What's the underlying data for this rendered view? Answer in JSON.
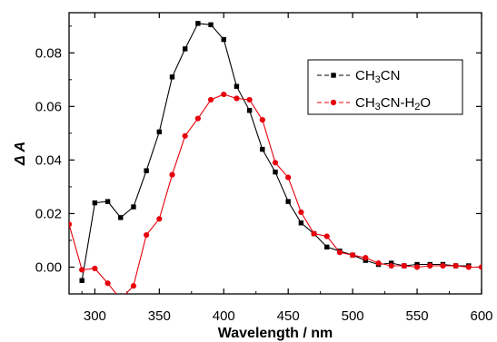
{
  "chart_data": {
    "type": "line",
    "title": "",
    "xlabel": "Wavelength / nm",
    "ylabel": "Δ A",
    "xlim": [
      280,
      600
    ],
    "ylim": [
      -0.01,
      0.095
    ],
    "xticks": [
      300,
      350,
      400,
      450,
      500,
      550,
      600
    ],
    "yticks": [
      0.0,
      0.02,
      0.04,
      0.06,
      0.08
    ],
    "xtick_labels": [
      "300",
      "350",
      "400",
      "450",
      "500",
      "550",
      "600"
    ],
    "ytick_labels": [
      "0.00",
      "0.02",
      "0.04",
      "0.06",
      "0.08"
    ],
    "grid": false,
    "legend_position": "top-right",
    "series": [
      {
        "name": "CH₃CN",
        "legend_parts": [
          "CH",
          "3",
          "CN"
        ],
        "color": "#000000",
        "marker": "square",
        "x": [
          290,
          300,
          310,
          320,
          330,
          340,
          350,
          360,
          370,
          380,
          390,
          400,
          410,
          420,
          430,
          440,
          450,
          460,
          470,
          480,
          490,
          500,
          510,
          520,
          530,
          540,
          550,
          560,
          570,
          580,
          590
        ],
        "y": [
          -0.005,
          0.024,
          0.0245,
          0.0185,
          0.0225,
          0.036,
          0.0505,
          0.071,
          0.0815,
          0.091,
          0.0905,
          0.085,
          0.0675,
          0.0585,
          0.044,
          0.0355,
          0.0245,
          0.0165,
          0.0125,
          0.0075,
          0.006,
          0.0045,
          0.0025,
          0.001,
          0.0015,
          0.0005,
          0.001,
          0.001,
          0.001,
          0.0005,
          0.0005
        ]
      },
      {
        "name": "CH₃CN-H₂O",
        "legend_parts": [
          "CH",
          "3",
          "CN-H",
          "2",
          "O"
        ],
        "color": "#e8000b",
        "marker": "circle",
        "x": [
          280,
          290,
          300,
          310,
          320,
          330,
          340,
          350,
          360,
          370,
          380,
          390,
          400,
          410,
          420,
          430,
          440,
          450,
          460,
          470,
          480,
          490,
          500,
          510,
          520,
          530,
          540,
          550,
          560,
          570,
          580,
          590,
          600
        ],
        "y": [
          0.016,
          -0.001,
          -0.0005,
          -0.006,
          -0.012,
          -0.007,
          0.012,
          0.018,
          0.0345,
          0.049,
          0.0555,
          0.0625,
          0.0645,
          0.063,
          0.0625,
          0.055,
          0.039,
          0.0335,
          0.0205,
          0.0125,
          0.0115,
          0.0055,
          0.0045,
          0.0035,
          0.0015,
          0.0005,
          0.0005,
          0.0,
          0.0005,
          0.0005,
          0.0005,
          0.0,
          0.0
        ]
      }
    ]
  }
}
